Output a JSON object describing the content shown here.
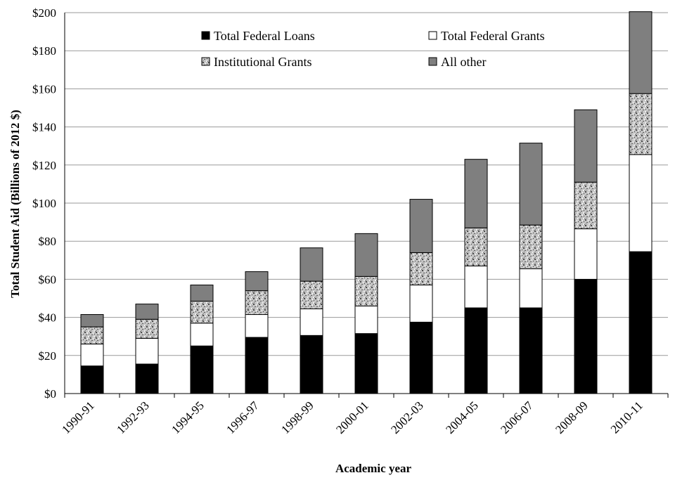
{
  "chart_data": {
    "type": "bar",
    "stacked": true,
    "title": "",
    "xlabel": "Academic year",
    "ylabel": "Total Student Aid (Billions of 2012 $)",
    "ylim": [
      0,
      200
    ],
    "y_tick_step": 20,
    "y_tick_format": "${v}",
    "grid": true,
    "legend_position": "top",
    "categories": [
      "1990-91",
      "1992-93",
      "1994-95",
      "1996-97",
      "1998-99",
      "2000-01",
      "2002-03",
      "2004-05",
      "2006-07",
      "2008-09",
      "2010-11"
    ],
    "series": [
      {
        "name": "Total Federal Loans",
        "fill": "black",
        "values": [
          14.5,
          15.5,
          25,
          29.5,
          30.5,
          31.5,
          37.5,
          45,
          45,
          60,
          74.5
        ]
      },
      {
        "name": "Total Federal Grants",
        "fill": "white",
        "values": [
          11.5,
          13.5,
          12,
          12,
          14,
          14.5,
          19.5,
          22,
          20.5,
          26.5,
          51
        ]
      },
      {
        "name": "Institutional Grants",
        "fill": "speckled",
        "values": [
          9,
          10,
          11.5,
          12.5,
          14.5,
          15.5,
          17,
          20,
          23,
          24.5,
          32
        ]
      },
      {
        "name": "All other",
        "fill": "gray",
        "values": [
          6.5,
          8,
          8.5,
          10,
          17.5,
          22.5,
          28,
          36,
          43,
          38,
          43
        ]
      }
    ]
  },
  "colors": {
    "loans": "#000000",
    "grants": "#ffffff",
    "institutional_bg": "#c8c8c8",
    "other": "#7f7f7f",
    "grid": "#9a9a9a"
  }
}
